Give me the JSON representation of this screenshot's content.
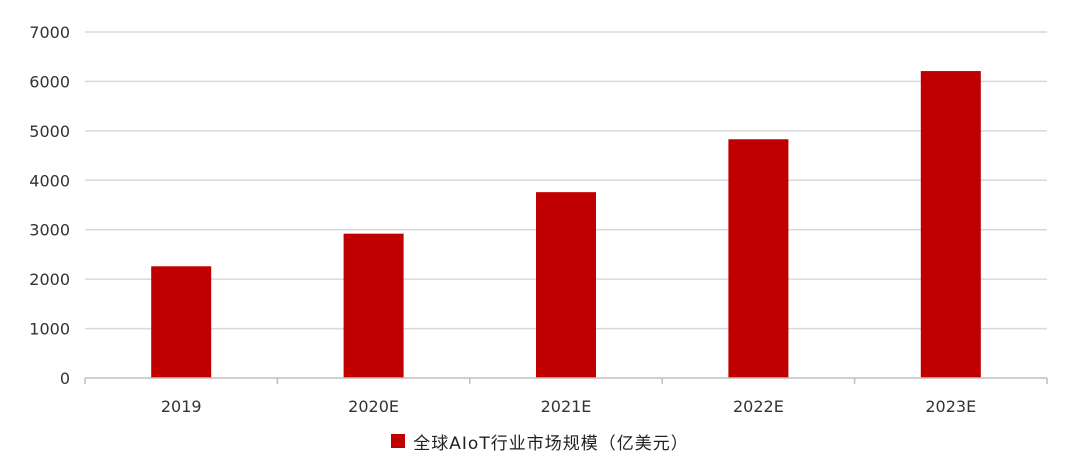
{
  "chart_data": {
    "type": "bar",
    "categories": [
      "2019",
      "2020E",
      "2021E",
      "2022E",
      "2023E"
    ],
    "series": [
      {
        "name": "全球AIoT行业市场规模（亿美元）",
        "values": [
          2260,
          2920,
          3760,
          4830,
          6210
        ]
      }
    ],
    "title": "",
    "xlabel": "",
    "ylabel": "",
    "ylim": [
      0,
      7000
    ],
    "yticks": [
      "0",
      "1000",
      "2000",
      "3000",
      "4000",
      "5000",
      "6000",
      "7000"
    ],
    "grid": true,
    "legend_position": "bottom-center",
    "bar_color": "#C00000",
    "grid_color": "#D9D9D9",
    "axis_color": "#BFBFBF"
  }
}
